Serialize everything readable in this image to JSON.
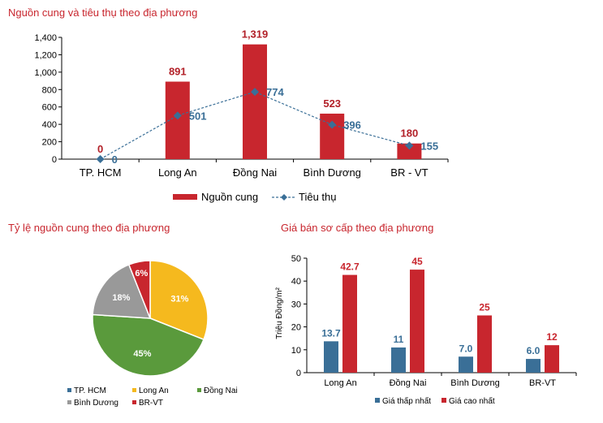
{
  "chart_data": [
    {
      "type": "bar",
      "title": "Nguồn cung và tiêu thụ theo địa phương",
      "categories": [
        "TP. HCM",
        "Long An",
        "Đồng Nai",
        "Bình Dương",
        "BR - VT"
      ],
      "series": [
        {
          "name": "Nguồn cung",
          "type": "bar",
          "color": "#c8262e",
          "values": [
            0,
            891,
            1319,
            523,
            180
          ],
          "labels": [
            "0",
            "891",
            "1,319",
            "523",
            "180"
          ]
        },
        {
          "name": "Tiêu thụ",
          "type": "line",
          "color": "#3a6f97",
          "values": [
            0,
            501,
            774,
            396,
            155
          ],
          "labels": [
            "0",
            "501",
            "774",
            "396",
            "155"
          ]
        }
      ],
      "ylim": [
        0,
        1400
      ],
      "yticks": [
        "0",
        "200",
        "400",
        "600",
        "800",
        "1,000",
        "1,200",
        "1,400"
      ],
      "legend": "bottom"
    },
    {
      "type": "pie",
      "title": "Tỷ lệ nguồn cung theo địa phương",
      "slices": [
        {
          "name": "TP. HCM",
          "value": 0,
          "label": "",
          "color": "#3a6f97"
        },
        {
          "name": "Long An",
          "value": 31,
          "label": "31%",
          "color": "#f5b91e"
        },
        {
          "name": "Đồng Nai",
          "value": 45,
          "label": "45%",
          "color": "#5a9a3c"
        },
        {
          "name": "Bình Dương",
          "value": 18,
          "label": "18%",
          "color": "#999999"
        },
        {
          "name": "BR-VT",
          "value": 6,
          "label": "6%",
          "color": "#c8262e"
        }
      ],
      "legend": "bottom"
    },
    {
      "type": "bar",
      "title": "Giá bán sơ cấp theo địa phương",
      "ylabel": "Triệu Đồng/m²",
      "categories": [
        "Long An",
        "Đồng Nai",
        "Bình Dương",
        "BR-VT"
      ],
      "series": [
        {
          "name": "Giá thấp nhất",
          "color": "#3a6f97",
          "values": [
            13.7,
            11,
            7.0,
            6.0
          ],
          "labels": [
            "13.7",
            "11",
            "7.0",
            "6.0"
          ]
        },
        {
          "name": "Giá cao nhất",
          "color": "#c8262e",
          "values": [
            42.7,
            45,
            25,
            12
          ],
          "labels": [
            "42.7",
            "45",
            "25",
            "12"
          ]
        }
      ],
      "ylim": [
        0,
        50
      ],
      "yticks": [
        "0",
        "10",
        "20",
        "30",
        "40",
        "50"
      ],
      "legend": "bottom"
    }
  ]
}
